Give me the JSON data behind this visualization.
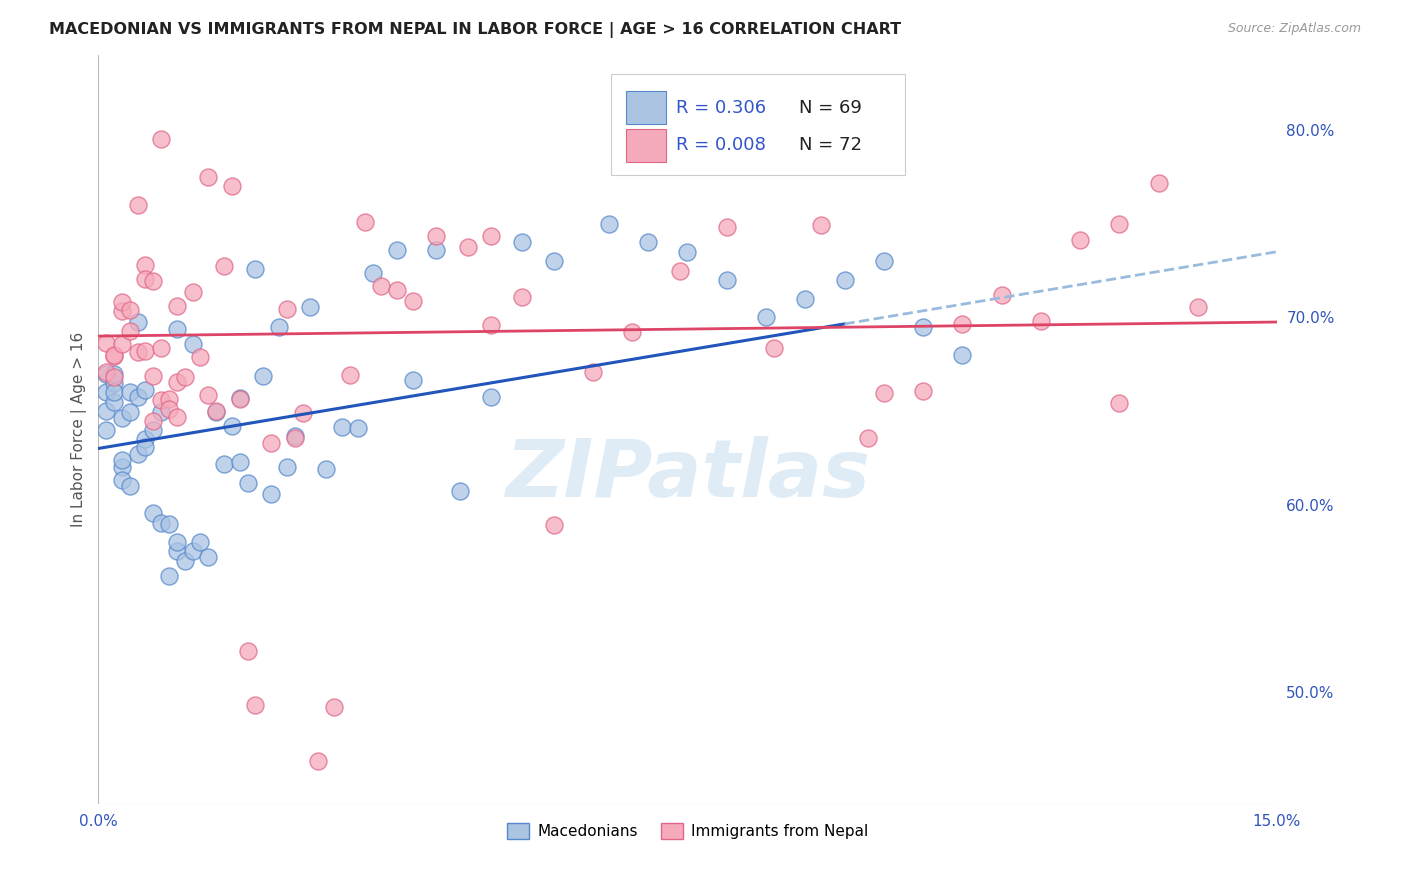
{
  "title": "MACEDONIAN VS IMMIGRANTS FROM NEPAL IN LABOR FORCE | AGE > 16 CORRELATION CHART",
  "source": "Source: ZipAtlas.com",
  "ylabel": "In Labor Force | Age > 16",
  "xlim": [
    0.0,
    0.15
  ],
  "ylim": [
    0.44,
    0.84
  ],
  "yticks_right": [
    0.5,
    0.6,
    0.7,
    0.8
  ],
  "ytick_right_labels": [
    "50.0%",
    "60.0%",
    "70.0%",
    "80.0%"
  ],
  "background_color": "#ffffff",
  "grid_color": "#d8d8d8",
  "macedonian_color": "#aac4e2",
  "nepal_color": "#f5aabb",
  "macedonian_edge": "#5588cc",
  "nepal_edge": "#e06688",
  "trend_blue": "#2255bb",
  "trend_pink": "#dd4466",
  "trend_dash_color": "#99bbdd",
  "R_macedonian": 0.306,
  "N_macedonian": 69,
  "R_nepal": 0.008,
  "N_nepal": 72,
  "legend_R_color": "#3355cc",
  "legend_N_color": "#222222",
  "watermark": "ZIPatlas",
  "legend_box_facecolor": "#ffffff",
  "legend_border_color": "#cccccc"
}
